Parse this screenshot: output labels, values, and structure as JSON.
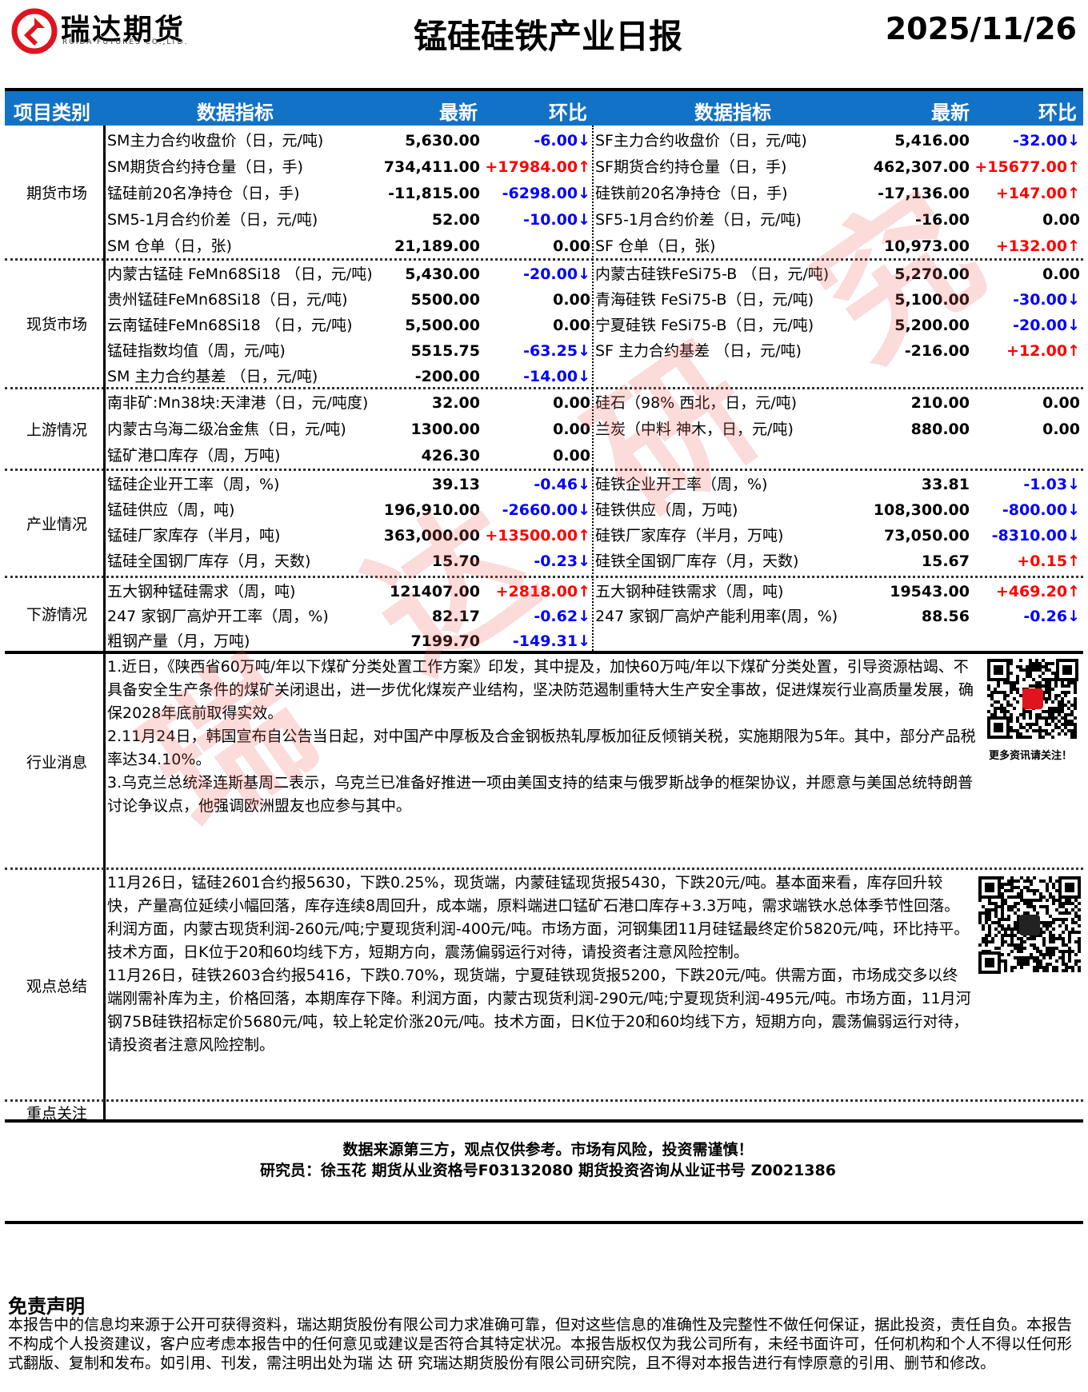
{
  "header": {
    "logo_name": "瑞达期货",
    "logo_sub": "RUIDA FUTURES CO.,LTD.",
    "title": "锰硅硅铁产业日报",
    "date": "2025/11/26"
  },
  "table_header": {
    "category": "项目类别",
    "indicator_left": "数据指标",
    "latest_left": "最新",
    "change_left": "环比",
    "indicator_right": "数据指标",
    "latest_right": "最新",
    "change_right": "环比"
  },
  "colors": {
    "header_bg": "#1272c6",
    "up": "#ff0000",
    "down": "#0000ff"
  },
  "sections": [
    {
      "category": "期货市场",
      "left": [
        {
          "name": "SM主力合约收盘价（日，元/吨)",
          "latest": "5,630.00",
          "change": "-6.00↓",
          "dir": "down"
        },
        {
          "name": "SM期货合约持仓量（日，手)",
          "latest": "734,411.00",
          "change": "+17984.00↑",
          "dir": "up"
        },
        {
          "name": "锰硅前20名净持仓（日，手)",
          "latest": "-11,815.00",
          "change": "-6298.00↓",
          "dir": "down"
        },
        {
          "name": "SM5-1月合约价差（日，元/吨)",
          "latest": "52.00",
          "change": "-10.00↓",
          "dir": "down"
        },
        {
          "name": "SM 仓单（日，张)",
          "latest": "21,189.00",
          "change": "0.00",
          "dir": "flat"
        }
      ],
      "right": [
        {
          "name": "SF主力合约收盘价（日，元/吨)",
          "latest": "5,416.00",
          "change": "-32.00↓",
          "dir": "down"
        },
        {
          "name": "SF期货合约持仓量（日，手)",
          "latest": "462,307.00",
          "change": "+15677.00↑",
          "dir": "up"
        },
        {
          "name": "硅铁前20名净持仓（日，手)",
          "latest": "-17,136.00",
          "change": "+147.00↑",
          "dir": "up"
        },
        {
          "name": "SF5-1月合约价差（日，元/吨)",
          "latest": "-16.00",
          "change": "0.00",
          "dir": "flat"
        },
        {
          "name": "SF 仓单（日，张)",
          "latest": "10,973.00",
          "change": "+132.00↑",
          "dir": "up"
        }
      ]
    },
    {
      "category": "现货市场",
      "left": [
        {
          "name": "内蒙古锰硅 FeMn68Si18 （日，元/吨)",
          "latest": "5,430.00",
          "change": "-20.00↓",
          "dir": "down"
        },
        {
          "name": "贵州锰硅FeMn68Si18（日，元/吨)",
          "latest": "5500.00",
          "change": "0.00",
          "dir": "flat"
        },
        {
          "name": "云南锰硅FeMn68Si18 （日，元/吨)",
          "latest": "5,500.00",
          "change": "0.00",
          "dir": "flat"
        },
        {
          "name": "锰硅指数均值（周，元/吨)",
          "latest": "5515.75",
          "change": "-63.25↓",
          "dir": "down"
        },
        {
          "name": "SM 主力合约基差 （日，元/吨)",
          "latest": "-200.00",
          "change": "-14.00↓",
          "dir": "down"
        }
      ],
      "right": [
        {
          "name": "内蒙古硅铁FeSi75-B （日，元/吨)",
          "latest": "5,270.00",
          "change": "0.00",
          "dir": "flat"
        },
        {
          "name": "青海硅铁 FeSi75-B（日，元/吨)",
          "latest": "5,100.00",
          "change": "-30.00↓",
          "dir": "down"
        },
        {
          "name": "宁夏硅铁 FeSi75-B（日，元/吨)",
          "latest": "5,200.00",
          "change": "-20.00↓",
          "dir": "down"
        },
        {
          "name": "SF 主力合约基差 （日，元/吨)",
          "latest": "-216.00",
          "change": "+12.00↑",
          "dir": "up"
        }
      ]
    },
    {
      "category": "上游情况",
      "left": [
        {
          "name": "南非矿:Mn38块:天津港（日，元/吨度)",
          "latest": "32.00",
          "change": "0.00",
          "dir": "flat"
        },
        {
          "name": "内蒙古乌海二级冶金焦（日，元/吨)",
          "latest": "1300.00",
          "change": "0.00",
          "dir": "flat"
        },
        {
          "name": "锰矿港口库存（周，万吨)",
          "latest": "426.30",
          "change": "0.00",
          "dir": "flat"
        }
      ],
      "right": [
        {
          "name": "硅石（98% 西北，日，元/吨)",
          "latest": "210.00",
          "change": "0.00",
          "dir": "flat"
        },
        {
          "name": "兰炭（中料 神木，日，元/吨)",
          "latest": "880.00",
          "change": "0.00",
          "dir": "flat"
        }
      ]
    },
    {
      "category": "产业情况",
      "left": [
        {
          "name": "锰硅企业开工率（周，%)",
          "latest": "39.13",
          "change": "-0.46↓",
          "dir": "down"
        },
        {
          "name": "锰硅供应（周，吨)",
          "latest": "196,910.00",
          "change": "-2660.00↓",
          "dir": "down"
        },
        {
          "name": "锰硅厂家库存（半月，吨)",
          "latest": "363,000.00",
          "change": "+13500.00↑",
          "dir": "up"
        },
        {
          "name": "锰硅全国钢厂库存（月，天数)",
          "latest": "15.70",
          "change": "-0.23↓",
          "dir": "down"
        }
      ],
      "right": [
        {
          "name": "硅铁企业开工率（周，%)",
          "latest": "33.81",
          "change": "-1.03↓",
          "dir": "down"
        },
        {
          "name": "硅铁供应（周，万吨)",
          "latest": "108,300.00",
          "change": "-800.00↓",
          "dir": "down"
        },
        {
          "name": "硅铁厂家库存（半月，万吨)",
          "latest": "73,050.00",
          "change": "-8310.00↓",
          "dir": "down"
        },
        {
          "name": "硅铁全国钢厂库存（月，天数)",
          "latest": "15.67",
          "change": "+0.15↑",
          "dir": "up"
        }
      ]
    },
    {
      "category": "下游情况",
      "left": [
        {
          "name": "五大钢种锰硅需求（周，吨)",
          "latest": "121407.00",
          "change": "+2818.00↑",
          "dir": "up"
        },
        {
          "name": "247 家钢厂高炉开工率（周，%)",
          "latest": "82.17",
          "change": "-0.62↓",
          "dir": "down"
        },
        {
          "name": "粗钢产量（月，万吨)",
          "latest": "7199.70",
          "change": "-149.31↓",
          "dir": "down"
        }
      ],
      "right": [
        {
          "name": "五大钢种硅铁需求（周，吨)",
          "latest": "19543.00",
          "change": "+469.20↑",
          "dir": "up"
        },
        {
          "name": " 247 家钢厂高炉产能利用率(周，%)",
          "latest": "88.56",
          "change": "-0.26↓",
          "dir": "down"
        }
      ]
    }
  ],
  "news": {
    "category": "行业消息",
    "paragraphs": [
      "1.近日，《陕西省60万吨/年以下煤矿分类处置工作方案》印发，其中提及，加快60万吨/年以下煤矿分类处置，引导资源枯竭、不具备安全生产条件的煤矿关闭退出，进一步优化煤炭产业结构，坚决防范遏制重特大生产安全事故，促进煤炭行业高质量发展，确保2028年底前取得实效。",
      "2.11月24日，韩国宣布自公告当日起，对中国产中厚板及合金钢板热轧厚板加征反倾销关税，实施期限为5年。其中，部分产品税率达34.10%。",
      "3.乌克兰总统泽连斯基周二表示，乌克兰已准备好推进一项由美国支持的结束与俄罗斯战争的框架协议，并愿意与美国总统特朗普讨论争议点，他强调欧洲盟友也应参与其中。"
    ],
    "qr_caption": "更多资讯请关注！"
  },
  "view": {
    "category": "观点总结",
    "paragraphs": [
      "11月26日，锰硅2601合约报5630，下跌0.25%，现货端，内蒙硅锰现货报5430，下跌20元/吨。基本面来看，库存回升较快，产量高位延续小幅回落，库存连续8周回升，成本端，原料端进口锰矿石港口库存+3.3万吨，需求端铁水总体季节性回落。利润方面，内蒙古现货利润-260元/吨;宁夏现货利润-400元/吨。市场方面，河钢集团11月硅锰最终定价5820元/吨，环比持平。技术方面，日K位于20和60均线下方，短期方向，震荡偏弱运行对待，请投资者注意风险控制。",
      "11月26日，硅铁2603合约报5416，下跌0.70%，现货端，宁夏硅铁现货报5200，下跌20元/吨。供需方面，市场成交多以终端刚需补库为主，价格回落，本期库存下降。利润方面，内蒙古现货利润-290元/吨;宁夏现货利润-495元/吨。市场方面，11月河钢75B硅铁招标定价5680元/吨，较上轮定价涨20元/吨。技术方面，日K位于20和60均线下方，短期方向，震荡偏弱运行对待，请投资者注意风险控制。"
    ]
  },
  "focus": {
    "category": "重点关注"
  },
  "footer": {
    "notice": "数据来源第三方，观点仅供参考。市场有风险，投资需谨慎！",
    "analyst": "研究员：徐玉花 期货从业资格号F03132080 期货投资咨询从业证书号 Z0021386"
  },
  "disclaimer": {
    "title": "免责声明",
    "text": "本报告中的信息均来源于公开可获得资料，瑞达期货股份有限公司力求准确可靠，但对这些信息的准确性及完整性不做任何保证，据此投资，责任自负。本报告不构成个人投资建议，客户应考虑本报告中的任何意见或建议是否符合其特定状况。本报告版权仅为我公司所有，未经书面许可，任何机构和个人不得以任何形式翻版、复制和发布。如引用、刊发，需注明出处为瑞 达 研 究瑞达期货股份有限公司研究院，且不得对本报告进行有悖原意的引用、删节和修改。"
  },
  "watermark": "瑞达研究"
}
